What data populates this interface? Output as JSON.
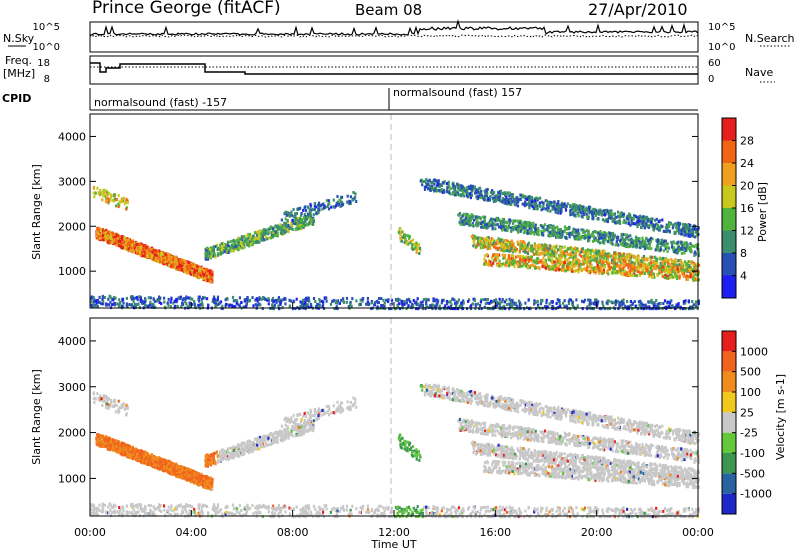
{
  "header": {
    "station": "Prince George (fitACF)",
    "beam": "Beam 08",
    "date": "27/Apr/2010"
  },
  "top_panels": {
    "nsky_label": "N.Sky",
    "nsky_ticks": [
      "10^5",
      "10^0"
    ],
    "nsearch_label": "N.Search",
    "nsearch_ticks": [
      "10^5",
      "10^0"
    ],
    "freq_label_1": "Freq.",
    "freq_label_2": "[MHz]",
    "freq_ticks": [
      "18",
      "8"
    ],
    "nave_label": "Nave",
    "nave_ticks": [
      "60",
      "0"
    ],
    "cpid_label": "CPID",
    "cpid_segments": [
      "normalsound (fast) -157",
      "normalsound (fast) 157"
    ]
  },
  "chart_data": [
    {
      "type": "heatmap",
      "title": "",
      "xlabel": "Time UT",
      "ylabel": "Slant Range [km]",
      "x_ticks": [
        "00:00",
        "04:00",
        "08:00",
        "12:00",
        "16:00",
        "20:00",
        "00:00"
      ],
      "y_ticks": [
        1000,
        2000,
        3000,
        4000
      ],
      "xlim": [
        "00:00",
        "24:00"
      ],
      "ylim": [
        180,
        4500
      ],
      "colorbar_label": "Power [dB]",
      "colorbar_ticks": [
        4,
        8,
        12,
        16,
        20,
        24,
        28
      ],
      "colorbar_range": [
        0,
        30
      ],
      "colors": [
        "#1e1ef0",
        "#2850b4",
        "#3c8c6e",
        "#50b43c",
        "#c8c81e",
        "#f0a01e",
        "#f06414",
        "#e61e1e"
      ]
    },
    {
      "type": "heatmap",
      "title": "",
      "xlabel": "Time UT",
      "ylabel": "Slant Range [km]",
      "x_ticks": [
        "00:00",
        "04:00",
        "08:00",
        "12:00",
        "16:00",
        "20:00",
        "00:00"
      ],
      "y_ticks": [
        1000,
        2000,
        3000,
        4000
      ],
      "xlim": [
        "00:00",
        "24:00"
      ],
      "ylim": [
        180,
        4500
      ],
      "colorbar_label": "Velocity [m s-1]",
      "colorbar_ticks": [
        "1000",
        "500",
        "100",
        "25",
        "-25",
        "-100",
        "-500",
        "-1000"
      ],
      "colors": [
        "#1e28c8",
        "#2864a0",
        "#3c9650",
        "#64c83c",
        "#c8c8c8",
        "#f0c81e",
        "#f08c1e",
        "#f0641e",
        "#e61e1e"
      ]
    }
  ]
}
